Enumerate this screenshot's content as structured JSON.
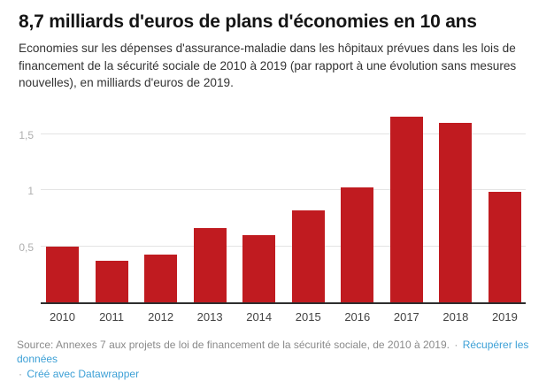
{
  "header": {
    "title": "8,7 milliards d'euros de plans d'économies en 10 ans",
    "subtitle": "Economies sur les dépenses d'assurance-maladie dans les hôpitaux prévues dans les lois de financement de la sécurité sociale de 2010 à 2019 (par rapport à une évolution sans mesures nouvelles), en milliards d'euros de 2019."
  },
  "chart_data": {
    "type": "bar",
    "title": "8,7 milliards d'euros de plans d'économies en 10 ans",
    "subtitle": "Economies sur les dépenses d'assurance-maladie dans les hôpitaux prévues dans les lois de financement de la sécurité sociale de 2010 à 2019 (par rapport à une évolution sans mesures nouvelles), en milliards d'euros de 2019.",
    "categories": [
      "2010",
      "2011",
      "2012",
      "2013",
      "2014",
      "2015",
      "2016",
      "2017",
      "2018",
      "2019"
    ],
    "values": [
      0.5,
      0.37,
      0.43,
      0.66,
      0.6,
      0.82,
      1.03,
      1.66,
      1.6,
      0.99
    ],
    "unit": "milliards d'euros de 2019",
    "xlabel": "",
    "ylabel": "",
    "ylim": [
      0,
      1.69
    ],
    "y_ticks": [
      {
        "value": 0.5,
        "label": "0,5"
      },
      {
        "value": 1,
        "label": "1"
      },
      {
        "value": 1.5,
        "label": "1,5"
      }
    ],
    "grid": true,
    "legend": false,
    "bar_color": "#c01b20",
    "gridline_color": "#e4e4e4",
    "axis_color": "#2e2e2e"
  },
  "footer": {
    "source_line": "Source: Annexes 7 aux projets de loi de financement de la sécurité sociale, de 2010 à 2019.",
    "separator": "·",
    "link_data": "Récupérer les données",
    "link_credit": "Créé avec Datawrapper",
    "link_color": "#3da0d6"
  }
}
